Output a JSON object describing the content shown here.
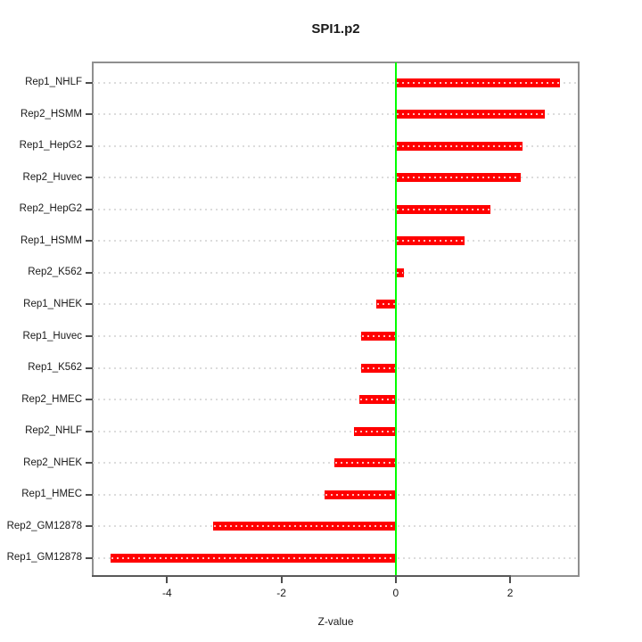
{
  "chart_data": {
    "type": "bar",
    "orientation": "horizontal",
    "title": "SPI1.p2",
    "xlabel": "Z-value",
    "categories": [
      "Rep1_NHLF",
      "Rep2_HSMM",
      "Rep1_HepG2",
      "Rep2_Huvec",
      "Rep2_HepG2",
      "Rep1_HSMM",
      "Rep2_K562",
      "Rep1_NHEK",
      "Rep1_Huvec",
      "Rep1_K562",
      "Rep2_HMEC",
      "Rep2_NHLF",
      "Rep2_NHEK",
      "Rep1_HMEC",
      "Rep2_GM12878",
      "Rep1_GM12878"
    ],
    "values": [
      2.88,
      2.61,
      2.21,
      2.18,
      1.66,
      1.2,
      0.14,
      -0.34,
      -0.6,
      -0.61,
      -0.63,
      -0.73,
      -1.08,
      -1.25,
      -3.19,
      -4.99
    ],
    "xlim": [
      -5.3,
      3.2
    ],
    "x_ticks": [
      "-4",
      "-2",
      "0",
      "2"
    ],
    "x_tick_values": [
      -4,
      -2,
      0,
      2
    ],
    "bar_color": "#ff0000",
    "zero_line_color": "#00ff00",
    "gridline_color": "#dcdcdc",
    "grid": "dotted horizontal lines per category",
    "legend": "none"
  }
}
